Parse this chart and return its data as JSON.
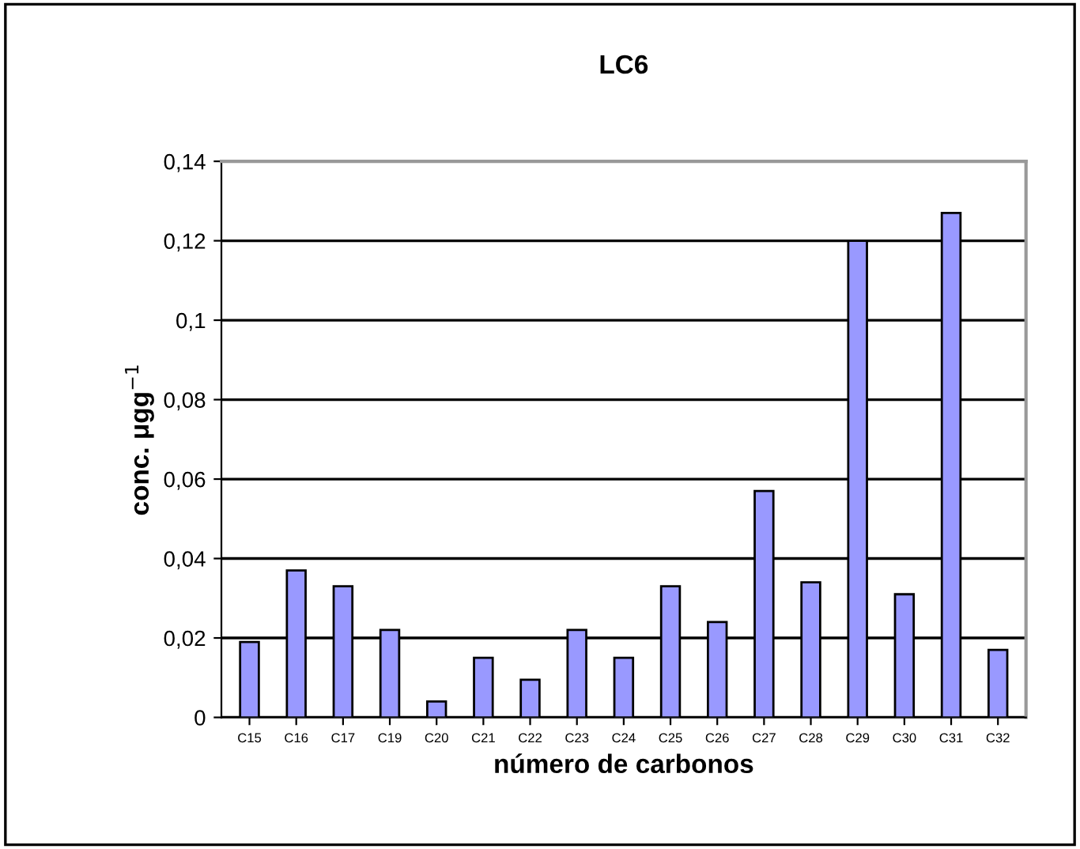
{
  "chart_data": {
    "type": "bar",
    "title": "LC6",
    "xlabel": "número de carbonos",
    "ylabel": "conc. μgg$^{−1}$",
    "categories": [
      "C15",
      "C16",
      "C17",
      "C19",
      "C20",
      "C21",
      "C22",
      "C23",
      "C24",
      "C25",
      "C26",
      "C27",
      "C28",
      "C29",
      "C30",
      "C31",
      "C32"
    ],
    "values": [
      0.019,
      0.037,
      0.033,
      0.022,
      0.004,
      0.015,
      0.0095,
      0.022,
      0.015,
      0.033,
      0.024,
      0.057,
      0.034,
      0.12,
      0.031,
      0.127,
      0.017
    ],
    "color": "#9999ff",
    "ylim": [
      0,
      0.14
    ],
    "yticks": [
      0,
      {
        "value": 0.02,
        "label": "0,02"
      },
      {
        "value": 0.04,
        "label": "0,04"
      },
      {
        "value": 0.06,
        "label": "0,06"
      },
      {
        "value": 0.08,
        "label": "0,08"
      },
      {
        "value": 0.1,
        "label": "0,1"
      },
      {
        "value": 0.12,
        "label": "0,12"
      },
      {
        "value": 0.14,
        "label": "0,14"
      }
    ],
    "grid": "y",
    "legend": false
  }
}
